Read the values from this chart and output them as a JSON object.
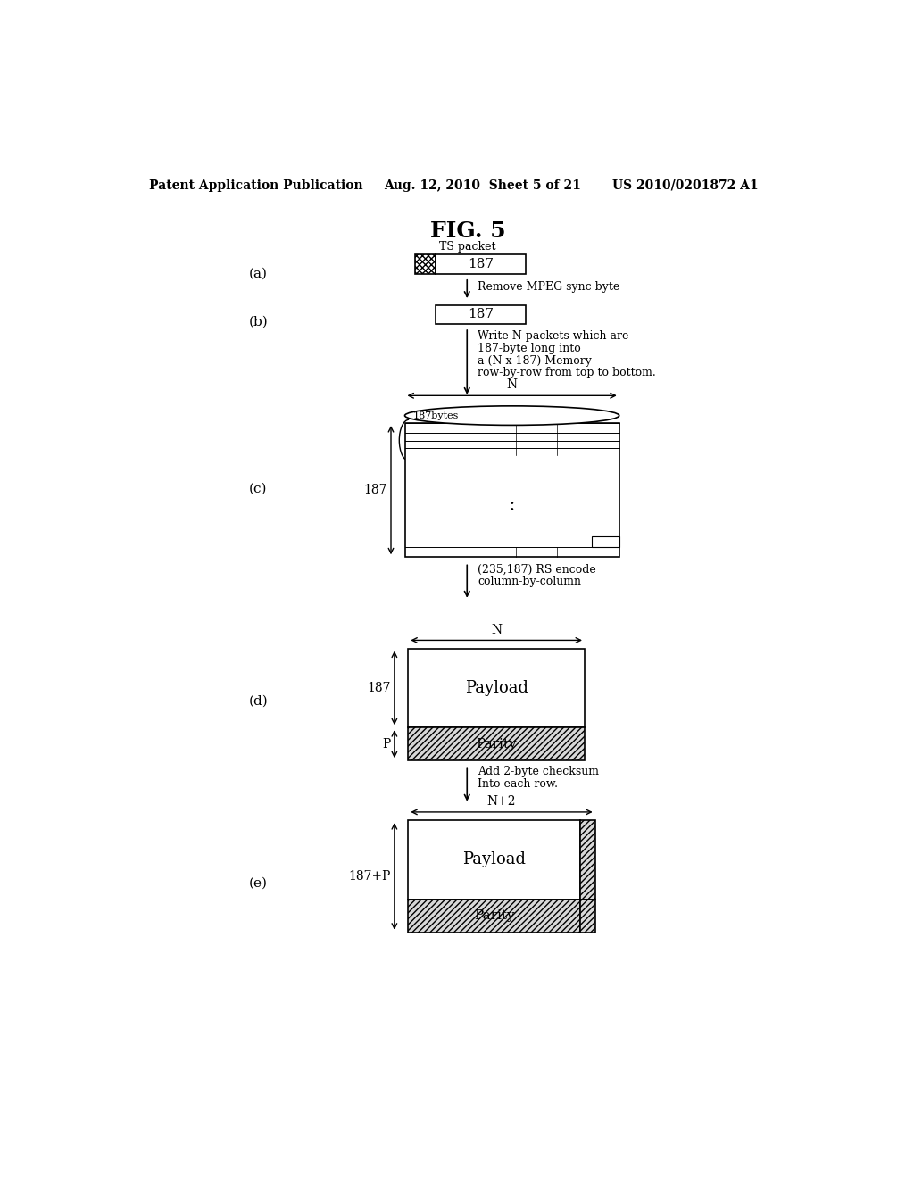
{
  "title": "FIG. 5",
  "header_left": "Patent Application Publication",
  "header_center": "Aug. 12, 2010  Sheet 5 of 21",
  "header_right": "US 2010/0201872 A1",
  "bg_color": "#ffffff",
  "label_a": "(a)",
  "label_b": "(b)",
  "label_c": "(c)",
  "label_d": "(d)",
  "label_e": "(e)",
  "ts_packet_label": "TS packet",
  "text_187_a": "187",
  "text_187_b": "187",
  "arrow1_text": "Remove MPEG sync byte",
  "arrow2_text_lines": [
    "Write N packets which are",
    "187-byte long into",
    "a (N x 187) Memory",
    "row-by-row from top to bottom."
  ],
  "label_N_c": "N",
  "label_187bytes_c": "187bytes",
  "label_187_c": "187",
  "label_dots_c": ":",
  "arrow3_text_lines": [
    "(235,187) RS encode",
    "column-by-column"
  ],
  "label_N_d": "N",
  "label_187_d": "187",
  "label_P_d": "P",
  "text_Payload_d": "Payload",
  "text_Parity_d": "Parity",
  "arrow4_text_lines": [
    "Add 2-byte checksum",
    "Into each row."
  ],
  "label_N2_e": "N+2",
  "label_187P_e": "187+P",
  "text_Payload_e": "Payload",
  "text_Parity_e": "Parity"
}
